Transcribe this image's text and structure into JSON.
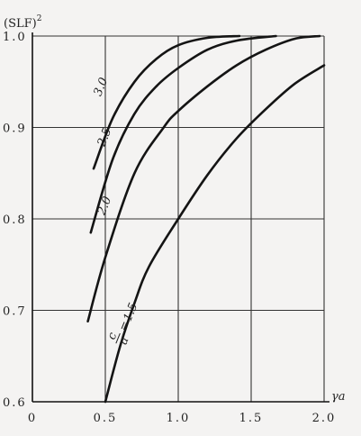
{
  "chart_data": {
    "type": "line",
    "ylabel": "(SLF)",
    "ylabel_superscript": "2",
    "xlabel": "γa",
    "xlim": [
      0,
      2.0
    ],
    "ylim": [
      0.6,
      1.0
    ],
    "x_ticks": [
      {
        "value": 0,
        "label": "0"
      },
      {
        "value": 0.5,
        "label": "0.5"
      },
      {
        "value": 1.0,
        "label": "1.0"
      },
      {
        "value": 1.5,
        "label": "1.5"
      },
      {
        "value": 2.0,
        "label": "2.0"
      }
    ],
    "y_ticks": [
      {
        "value": 0.6,
        "label": "0.6"
      },
      {
        "value": 0.7,
        "label": "0.7"
      },
      {
        "value": 0.8,
        "label": "0.8"
      },
      {
        "value": 0.9,
        "label": "0.9"
      },
      {
        "value": 1.0,
        "label": "1.0"
      }
    ],
    "grid": true,
    "curve_label_prefix": {
      "numerator": "c",
      "denominator": "a",
      "equals": "="
    },
    "series": [
      {
        "name": "3.0",
        "x": [
          0.42,
          0.55,
          0.7,
          0.85,
          1.0,
          1.2,
          1.42
        ],
        "y": [
          0.855,
          0.91,
          0.95,
          0.975,
          0.99,
          0.998,
          1.0
        ]
      },
      {
        "name": "2.5",
        "x": [
          0.4,
          0.55,
          0.7,
          0.85,
          1.0,
          1.2,
          1.4,
          1.67
        ],
        "y": [
          0.785,
          0.865,
          0.915,
          0.945,
          0.965,
          0.985,
          0.995,
          1.0
        ]
      },
      {
        "name": "2.0",
        "x": [
          0.38,
          0.5,
          0.7,
          0.9,
          1.0,
          1.2,
          1.4,
          1.6,
          1.8,
          1.97
        ],
        "y": [
          0.688,
          0.758,
          0.85,
          0.9,
          0.918,
          0.945,
          0.968,
          0.985,
          0.997,
          1.0
        ]
      },
      {
        "name": "1.5",
        "x": [
          0.5,
          0.6,
          0.7,
          0.8,
          1.0,
          1.2,
          1.4,
          1.6,
          1.8,
          2.0
        ],
        "y": [
          0.6,
          0.66,
          0.708,
          0.748,
          0.8,
          0.848,
          0.888,
          0.92,
          0.948,
          0.968
        ]
      }
    ]
  }
}
